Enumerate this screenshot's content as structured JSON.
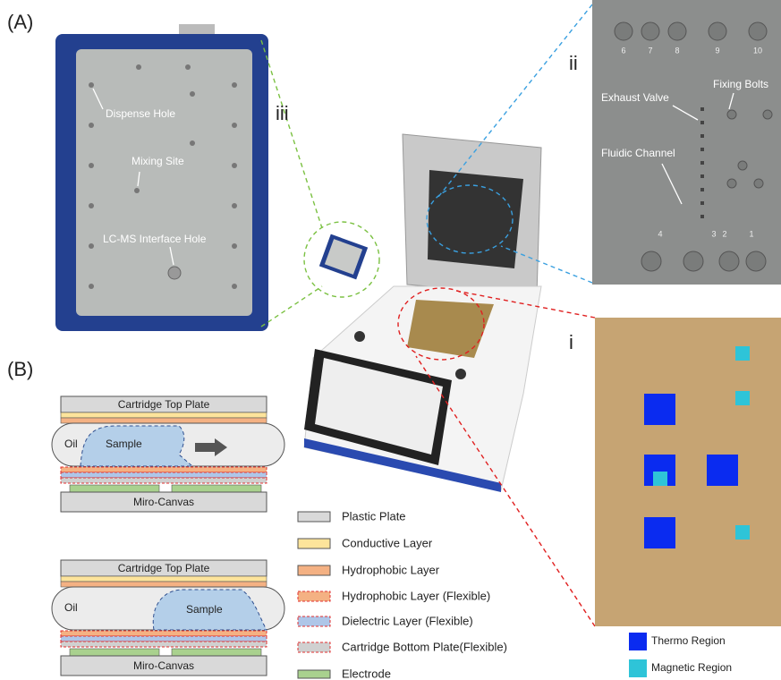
{
  "panel_labels": {
    "a": "(A)",
    "b": "(B)",
    "ii": "ii",
    "iii": "iii",
    "i": "i"
  },
  "cartridge_photo": {
    "annotations": [
      "Dispense Hole",
      "Mixing Site",
      "LC-MS Interface Hole"
    ]
  },
  "chip_closeup": {
    "annotations": [
      "Exhaust Valve",
      "Fixing Bolts",
      "Fluidic Channel"
    ],
    "top_ports": [
      "6",
      "7",
      "8",
      "9",
      "10"
    ],
    "bottom_ports": [
      "4",
      "3",
      "2",
      "1"
    ]
  },
  "schematics": [
    {
      "top_plate": "Cartridge Top Plate",
      "oil": "Oil",
      "sample": "Sample",
      "base": "Miro-Canvas"
    },
    {
      "top_plate": "Cartridge Top Plate",
      "oil": "Oil",
      "sample": "Sample",
      "base": "Miro-Canvas"
    }
  ],
  "layer_legend": [
    "Plastic Plate",
    "Conductive Layer",
    "Hydrophobic Layer",
    "Hydrophobic Layer (Flexible)",
    "Dielectric Layer (Flexible)",
    "Cartridge Bottom Plate(Flexible)",
    "Electrode"
  ],
  "region_legend": [
    "Thermo Region",
    "Magnetic Region"
  ]
}
